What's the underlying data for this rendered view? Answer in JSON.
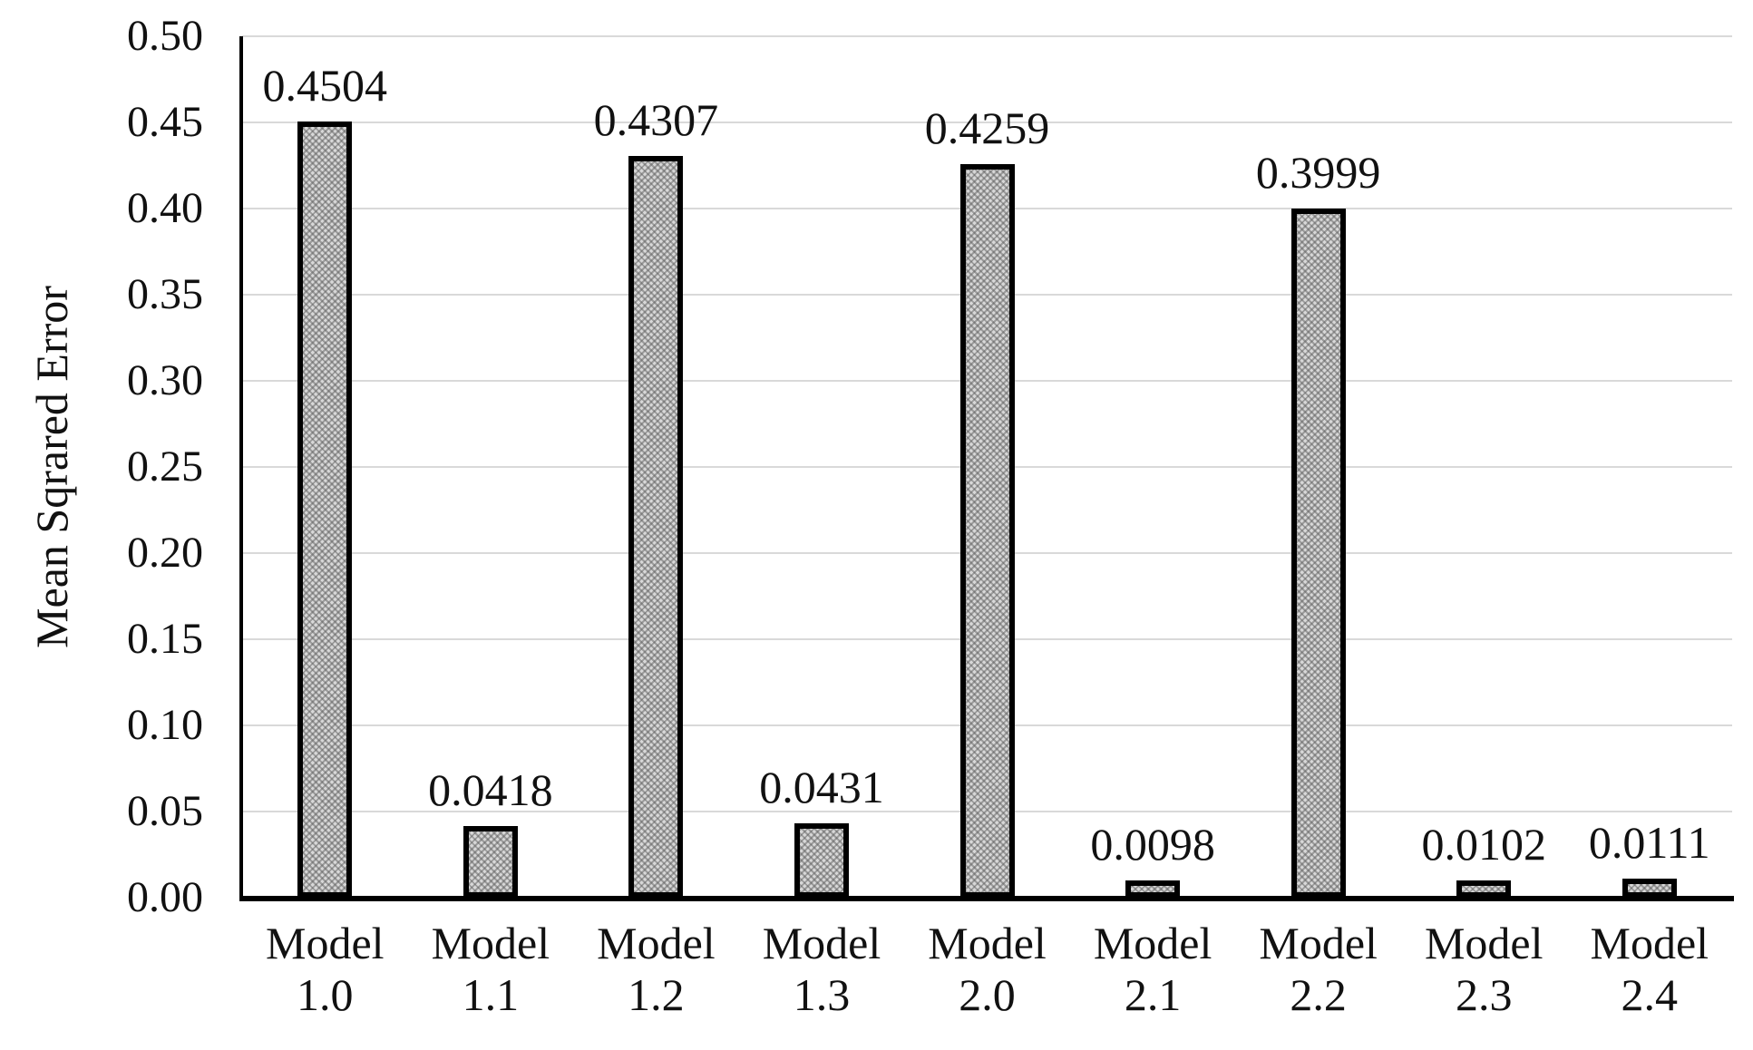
{
  "figure": {
    "background": "#ffffff",
    "text_color": "#111111",
    "grid_color": "#d9d9d9",
    "axis_color": "#000000",
    "bar_fill": "#c9c9c9",
    "bar_border": "#000000"
  },
  "chart_data": {
    "type": "bar",
    "title": "",
    "xlabel": "",
    "ylabel": "Mean Sqrared Error",
    "categories": [
      "Model 1.0",
      "Model 1.1",
      "Model 1.2",
      "Model 1.3",
      "Model 2.0",
      "Model 2.1",
      "Model 2.2",
      "Model 2.3",
      "Model 2.4"
    ],
    "category_lines": [
      [
        "Model",
        "1.0"
      ],
      [
        "Model",
        "1.1"
      ],
      [
        "Model",
        "1.2"
      ],
      [
        "Model",
        "1.3"
      ],
      [
        "Model",
        "2.0"
      ],
      [
        "Model",
        "2.1"
      ],
      [
        "Model",
        "2.2"
      ],
      [
        "Model",
        "2.3"
      ],
      [
        "Model",
        "2.4"
      ]
    ],
    "values": [
      0.4504,
      0.0418,
      0.4307,
      0.0431,
      0.4259,
      0.0098,
      0.3999,
      0.0102,
      0.0111
    ],
    "value_labels": [
      "0.4504",
      "0.0418",
      "0.4307",
      "0.0431",
      "0.4259",
      "0.0098",
      "0.3999",
      "0.0102",
      "0.0111"
    ],
    "ylim": [
      0.0,
      0.5
    ],
    "yticks": [
      0.5,
      0.45,
      0.4,
      0.35,
      0.3,
      0.25,
      0.2,
      0.15,
      0.1,
      0.05,
      0.0
    ],
    "ytick_labels": [
      "0.50",
      "0.45",
      "0.40",
      "0.35",
      "0.30",
      "0.25",
      "0.20",
      "0.15",
      "0.10",
      "0.05",
      "0.00"
    ],
    "grid": true,
    "legend": null,
    "bar_style": "gray-hatched-black-border"
  }
}
